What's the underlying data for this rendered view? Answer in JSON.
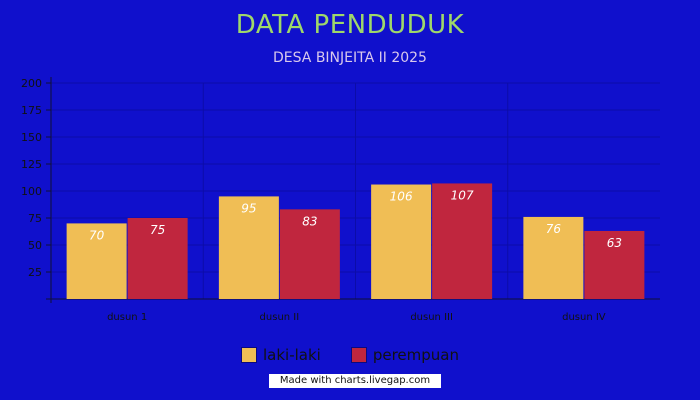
{
  "title": "DATA PENDUDUK",
  "subtitle": "DESA BINJEITA II 2025",
  "credit": "Made with charts.livegap.com",
  "colors": {
    "background": "#1010cc",
    "title": "#9fd86a",
    "subtitle": "#d8c8ec",
    "grid": "#0c0ca8",
    "axis": "#111133"
  },
  "chart_data": {
    "type": "bar",
    "categories": [
      "dusun 1",
      "dusun II",
      "dusun III",
      "dusun IV"
    ],
    "series": [
      {
        "name": "laki-laki",
        "color": "#f0be55",
        "values": [
          70,
          95,
          106,
          76
        ]
      },
      {
        "name": "perempuan",
        "color": "#c0263e",
        "values": [
          75,
          83,
          107,
          63
        ]
      }
    ],
    "ylim": [
      0,
      200
    ],
    "yticks": [
      25,
      50,
      75,
      100,
      125,
      150,
      175,
      200
    ],
    "grid": true,
    "legend": "bottom"
  }
}
